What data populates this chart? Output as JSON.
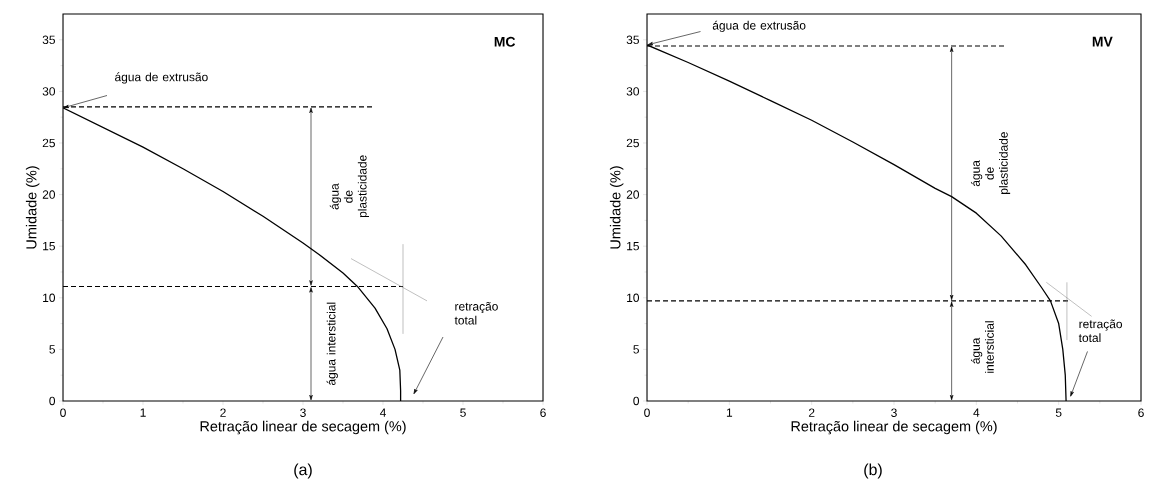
{
  "chart_data": [
    {
      "type": "line",
      "title": "MC",
      "xlabel": "Retração linear de secagem (%)",
      "ylabel": "Umidade (%)",
      "x": [
        0,
        0.5,
        1,
        1.5,
        2,
        2.5,
        3,
        3.2,
        3.5,
        3.68,
        3.9,
        4.05,
        4.15,
        4.21,
        4.22,
        4.22
      ],
      "series": [
        {
          "color": "#000000",
          "values": [
            28.4,
            26.5,
            24.6,
            22.5,
            20.3,
            17.9,
            15.3,
            14.2,
            12.4,
            11.1,
            9,
            7,
            5,
            3,
            1,
            0
          ]
        }
      ],
      "xlim": [
        0,
        6
      ],
      "ylim": [
        0,
        37.5
      ],
      "xticks": [
        0,
        1,
        2,
        3,
        4,
        5,
        6
      ],
      "yticks": [
        0,
        5,
        10,
        15,
        20,
        25,
        30,
        35
      ],
      "grid": false,
      "marker": "none",
      "line_style": "solid",
      "ref_lines": [
        {
          "axis": "y",
          "value": 28.5,
          "color": "#000000",
          "line_style": "dashed"
        },
        {
          "axis": "y",
          "value": 11.1,
          "color": "#000000",
          "line_style": "dashed"
        }
      ],
      "annotations": [
        {
          "text": "água de extrusão",
          "x": 0,
          "y": 28.4
        },
        "água de plasticidade",
        "água intersticial",
        "retração total",
        "(a)"
      ]
    },
    {
      "type": "line",
      "title": "MV",
      "xlabel": "Retração linear de secagem (%)",
      "ylabel": "Umidade (%)",
      "x": [
        0,
        0.5,
        1,
        1.5,
        2,
        2.5,
        3,
        3.5,
        3.7,
        4,
        4.3,
        4.6,
        4.8,
        4.9,
        5,
        5.05,
        5.08,
        5.09
      ],
      "series": [
        {
          "color": "#000000",
          "values": [
            34.5,
            32.8,
            31,
            29.1,
            27.2,
            25.1,
            22.9,
            20.6,
            19.8,
            18.2,
            16,
            13.2,
            10.9,
            9.7,
            7.5,
            5,
            2.5,
            0
          ]
        }
      ],
      "xlim": [
        0,
        6
      ],
      "ylim": [
        0,
        37.5
      ],
      "xticks": [
        0,
        1,
        2,
        3,
        4,
        5,
        6
      ],
      "yticks": [
        0,
        5,
        10,
        15,
        20,
        25,
        30,
        35
      ],
      "grid": false,
      "marker": "none",
      "line_style": "solid",
      "ref_lines": [
        {
          "axis": "y",
          "value": 34.4,
          "color": "#000000",
          "line_style": "dashed"
        },
        {
          "axis": "y",
          "value": 9.7,
          "color": "#000000",
          "line_style": "dashed"
        }
      ],
      "annotations": [
        {
          "text": "água de extrusão",
          "x": 0,
          "y": 34.5
        },
        "água de plasticidade",
        "água intersticial",
        "retração total",
        "(b)"
      ]
    }
  ]
}
